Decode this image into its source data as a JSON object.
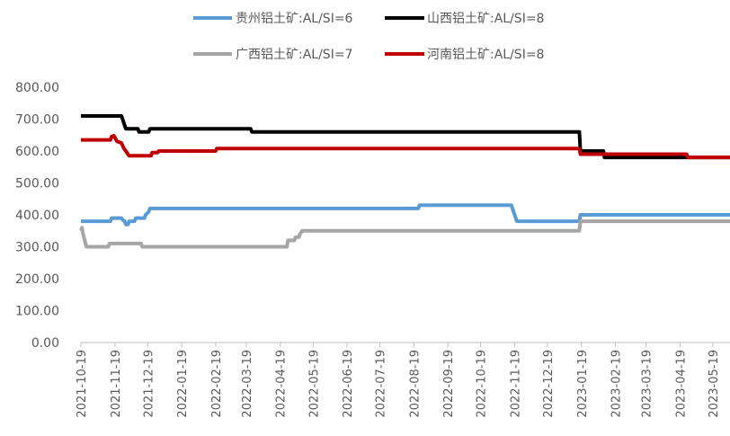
{
  "chart_data": {
    "type": "line",
    "title": "",
    "xlabel": "",
    "ylabel": "",
    "ylim": [
      0,
      800
    ],
    "y_ticks": [
      "0.00",
      "100.00",
      "200.00",
      "300.00",
      "400.00",
      "500.00",
      "600.00",
      "700.00",
      "800.00"
    ],
    "x_ticks": [
      "2021-10-19",
      "2021-11-19",
      "2021-12-19",
      "2022-01-19",
      "2022-02-19",
      "2022-03-19",
      "2022-04-19",
      "2022-05-19",
      "2022-06-19",
      "2022-07-19",
      "2022-08-19",
      "2022-09-19",
      "2022-10-19",
      "2022-11-19",
      "2022-12-19",
      "2023-01-19",
      "2023-02-19",
      "2023-03-19",
      "2023-04-19",
      "2023-05-19"
    ],
    "grid": false,
    "legend_position": "top",
    "series": [
      {
        "name": "贵州铝土矿:AL/SI=6",
        "color": "#5B9BD5",
        "points": [
          [
            "2021-10-19",
            380
          ],
          [
            "2021-11-15",
            380
          ],
          [
            "2021-11-16",
            390
          ],
          [
            "2021-11-25",
            390
          ],
          [
            "2021-11-26",
            385
          ],
          [
            "2021-11-28",
            380
          ],
          [
            "2021-11-29",
            370
          ],
          [
            "2021-12-01",
            370
          ],
          [
            "2021-12-02",
            380
          ],
          [
            "2021-12-07",
            380
          ],
          [
            "2021-12-08",
            390
          ],
          [
            "2021-12-16",
            390
          ],
          [
            "2021-12-17",
            400
          ],
          [
            "2021-12-20",
            410
          ],
          [
            "2021-12-21",
            420
          ],
          [
            "2022-08-23",
            420
          ],
          [
            "2022-08-24",
            430
          ],
          [
            "2022-11-16",
            430
          ],
          [
            "2022-11-17",
            420
          ],
          [
            "2022-11-19",
            400
          ],
          [
            "2022-11-20",
            390
          ],
          [
            "2022-11-21",
            380
          ],
          [
            "2023-01-17",
            380
          ],
          [
            "2023-01-18",
            400
          ],
          [
            "2023-06-07",
            400
          ]
        ]
      },
      {
        "name": "山西铝土矿:AL/SI=8",
        "color": "#000000",
        "points": [
          [
            "2021-10-19",
            710
          ],
          [
            "2021-11-25",
            710
          ],
          [
            "2021-11-26",
            700
          ],
          [
            "2021-11-27",
            690
          ],
          [
            "2021-11-28",
            680
          ],
          [
            "2021-11-29",
            670
          ],
          [
            "2021-12-10",
            670
          ],
          [
            "2021-12-11",
            660
          ],
          [
            "2021-12-20",
            660
          ],
          [
            "2021-12-21",
            670
          ],
          [
            "2022-03-23",
            670
          ],
          [
            "2022-03-24",
            660
          ],
          [
            "2023-01-17",
            660
          ],
          [
            "2023-01-18",
            600
          ],
          [
            "2023-02-08",
            600
          ],
          [
            "2023-02-09",
            580
          ],
          [
            "2023-06-07",
            580
          ]
        ]
      },
      {
        "name": "广西铝土矿:AL/SI=7",
        "color": "#A5A5A5",
        "points": [
          [
            "2021-10-19",
            350
          ],
          [
            "2021-10-20",
            360
          ],
          [
            "2021-10-21",
            340
          ],
          [
            "2021-10-24",
            300
          ],
          [
            "2021-11-13",
            300
          ],
          [
            "2021-11-14",
            310
          ],
          [
            "2021-12-13",
            310
          ],
          [
            "2021-12-14",
            300
          ],
          [
            "2022-04-25",
            300
          ],
          [
            "2022-04-26",
            320
          ],
          [
            "2022-05-02",
            320
          ],
          [
            "2022-05-03",
            330
          ],
          [
            "2022-05-06",
            330
          ],
          [
            "2022-05-07",
            340
          ],
          [
            "2022-05-09",
            350
          ],
          [
            "2023-01-17",
            350
          ],
          [
            "2023-01-18",
            380
          ],
          [
            "2023-06-07",
            380
          ]
        ]
      },
      {
        "name": "河南铝土矿:AL/SI=8",
        "color": "#C00000",
        "points": [
          [
            "2021-10-19",
            635
          ],
          [
            "2021-11-15",
            635
          ],
          [
            "2021-11-16",
            645
          ],
          [
            "2021-11-18",
            648
          ],
          [
            "2021-11-21",
            630
          ],
          [
            "2021-11-25",
            625
          ],
          [
            "2021-11-27",
            610
          ],
          [
            "2021-11-30",
            595
          ],
          [
            "2021-12-02",
            585
          ],
          [
            "2021-12-22",
            585
          ],
          [
            "2021-12-23",
            595
          ],
          [
            "2021-12-28",
            595
          ],
          [
            "2021-12-29",
            600
          ],
          [
            "2022-02-19",
            600
          ],
          [
            "2022-02-20",
            608
          ],
          [
            "2023-01-17",
            608
          ],
          [
            "2023-01-18",
            590
          ],
          [
            "2023-04-25",
            590
          ],
          [
            "2023-04-26",
            580
          ],
          [
            "2023-06-07",
            580
          ]
        ]
      }
    ]
  }
}
